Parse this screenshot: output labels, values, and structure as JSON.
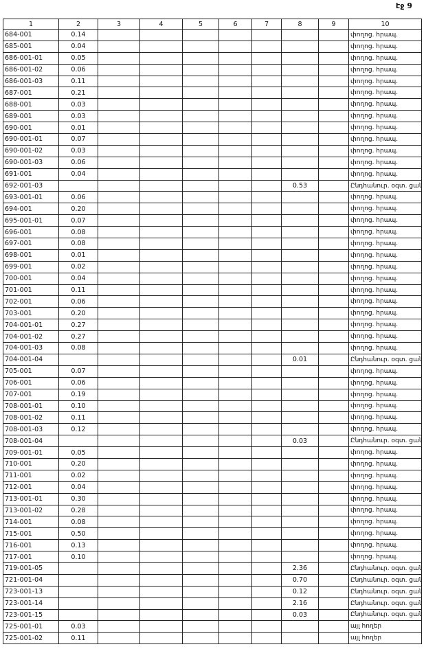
{
  "page_number": "էջ 9",
  "table": {
    "headers": [
      "1",
      "2",
      "3",
      "4",
      "5",
      "6",
      "7",
      "8",
      "9",
      "10"
    ],
    "rows": [
      {
        "id": "684-001",
        "col2": "0.14",
        "col10": "փողոց. հրապ."
      },
      {
        "id": "685-001",
        "col2": "0.04",
        "col10": "փողոց. հրապ."
      },
      {
        "id": "686-001-01",
        "col2": "0.05",
        "col10": "փողոց. հրապ."
      },
      {
        "id": "686-001-02",
        "col2": "0.06",
        "col10": "փողոց. հրապ."
      },
      {
        "id": "686-001-03",
        "col2": "0.11",
        "col10": "փողոց. հրապ."
      },
      {
        "id": "687-001",
        "col2": "0.21",
        "col10": "փողոց. հրապ."
      },
      {
        "id": "688-001",
        "col2": "0.03",
        "col10": "փողոց. հրապ."
      },
      {
        "id": "689-001",
        "col2": "0.03",
        "col10": "փողոց. հրապ."
      },
      {
        "id": "690-001",
        "col2": "0.01",
        "col10": "փողոց. հրապ."
      },
      {
        "id": "690-001-01",
        "col2": "0.07",
        "col10": "փողոց. հրապ."
      },
      {
        "id": "690-001-02",
        "col2": "0.03",
        "col10": "փողոց. հրապ."
      },
      {
        "id": "690-001-03",
        "col2": "0.06",
        "col10": "փողոց. հրապ."
      },
      {
        "id": "691-001",
        "col2": "0.04",
        "col10": "փողոց. հրապ."
      },
      {
        "id": "692-001-03",
        "col8": "0.53",
        "col10": "Ընդհանուր. օգտ. ցան"
      },
      {
        "id": "693-001-01",
        "col2": "0.06",
        "col10": "փողոց. հրապ."
      },
      {
        "id": "694-001",
        "col2": "0.20",
        "col10": "փողոց. հրապ."
      },
      {
        "id": "695-001-01",
        "col2": "0.07",
        "col10": "փողոց. հրապ."
      },
      {
        "id": "696-001",
        "col2": "0.08",
        "col10": "փողոց. հրապ."
      },
      {
        "id": "697-001",
        "col2": "0.08",
        "col10": "փողոց. հրապ."
      },
      {
        "id": "698-001",
        "col2": "0.01",
        "col10": "փողոց. հրապ."
      },
      {
        "id": "699-001",
        "col2": "0.02",
        "col10": "փողոց. հրապ."
      },
      {
        "id": "700-001",
        "col2": "0.04",
        "col10": "փողոց. հրապ."
      },
      {
        "id": "701-001",
        "col2": "0.11",
        "col10": "փողոց. հրապ."
      },
      {
        "id": "702-001",
        "col2": "0.06",
        "col10": "փողոց. հրապ."
      },
      {
        "id": "703-001",
        "col2": "0.20",
        "col10": "փողոց. հրապ."
      },
      {
        "id": "704-001-01",
        "col2": "0.27",
        "col10": "փողոց. հրապ."
      },
      {
        "id": "704-001-02",
        "col2": "0.27",
        "col10": "փողոց. հրապ."
      },
      {
        "id": "704-001-03",
        "col2": "0.08",
        "col10": "փողոց. հրապ."
      },
      {
        "id": "704-001-04",
        "col8": "0.01",
        "col10": "Ընդհանուր. օգտ. ցան"
      },
      {
        "id": "705-001",
        "col2": "0.07",
        "col10": "փողոց. հրապ."
      },
      {
        "id": "706-001",
        "col2": "0.06",
        "col10": "փողոց. հրապ."
      },
      {
        "id": "707-001",
        "col2": "0.19",
        "col10": "փողոց. հրապ."
      },
      {
        "id": "708-001-01",
        "col2": "0.10",
        "col10": "փողոց. հրապ."
      },
      {
        "id": "708-001-02",
        "col2": "0.11",
        "col10": "փողոց. հրապ."
      },
      {
        "id": "708-001-03",
        "col2": "0.12",
        "col10": "փողոց. հրապ."
      },
      {
        "id": "708-001-04",
        "col8": "0.03",
        "col10": "Ընդհանուր. օգտ. ցան"
      },
      {
        "id": "709-001-01",
        "col2": "0.05",
        "col10": "փողոց. հրապ."
      },
      {
        "id": "710-001",
        "col2": "0.20",
        "col10": "փողոց. հրապ."
      },
      {
        "id": "711-001",
        "col2": "0.02",
        "col10": "փողոց. հրապ."
      },
      {
        "id": "712-001",
        "col2": "0.04",
        "col10": "փողոց. հրապ."
      },
      {
        "id": "713-001-01",
        "col2": "0.30",
        "col10": "փողոց. հրապ."
      },
      {
        "id": "713-001-02",
        "col2": "0.28",
        "col10": "փողոց. հրապ."
      },
      {
        "id": "714-001",
        "col2": "0.08",
        "col10": "փողոց. հրապ."
      },
      {
        "id": "715-001",
        "col2": "0.50",
        "col10": "փողոց. հրապ."
      },
      {
        "id": "716-001",
        "col2": "0.13",
        "col10": "փողոց. հրապ."
      },
      {
        "id": "717-001",
        "col2": "0.10",
        "col10": "փողոց. հրապ."
      },
      {
        "id": "719-001-05",
        "col8": "2.36",
        "col10": "Ընդհանուր. օգտ. ցան"
      },
      {
        "id": "721-001-04",
        "col8": "0.70",
        "col10": "Ընդհանուր. օգտ. ցան"
      },
      {
        "id": "723-001-13",
        "col8": "0.12",
        "col10": "Ընդհանուր. օգտ. ցան"
      },
      {
        "id": "723-001-14",
        "col8": "2.16",
        "col10": "Ընդհանուր. օգտ. ցան"
      },
      {
        "id": "723-001-15",
        "col8": "0.03",
        "col10": "Ընդհանուր. օգտ. ցան"
      },
      {
        "id": "725-001-01",
        "col2": "0.03",
        "col10": "այլ հողեր"
      },
      {
        "id": "725-001-02",
        "col2": "0.11",
        "col10": "այլ հողեր"
      }
    ]
  }
}
